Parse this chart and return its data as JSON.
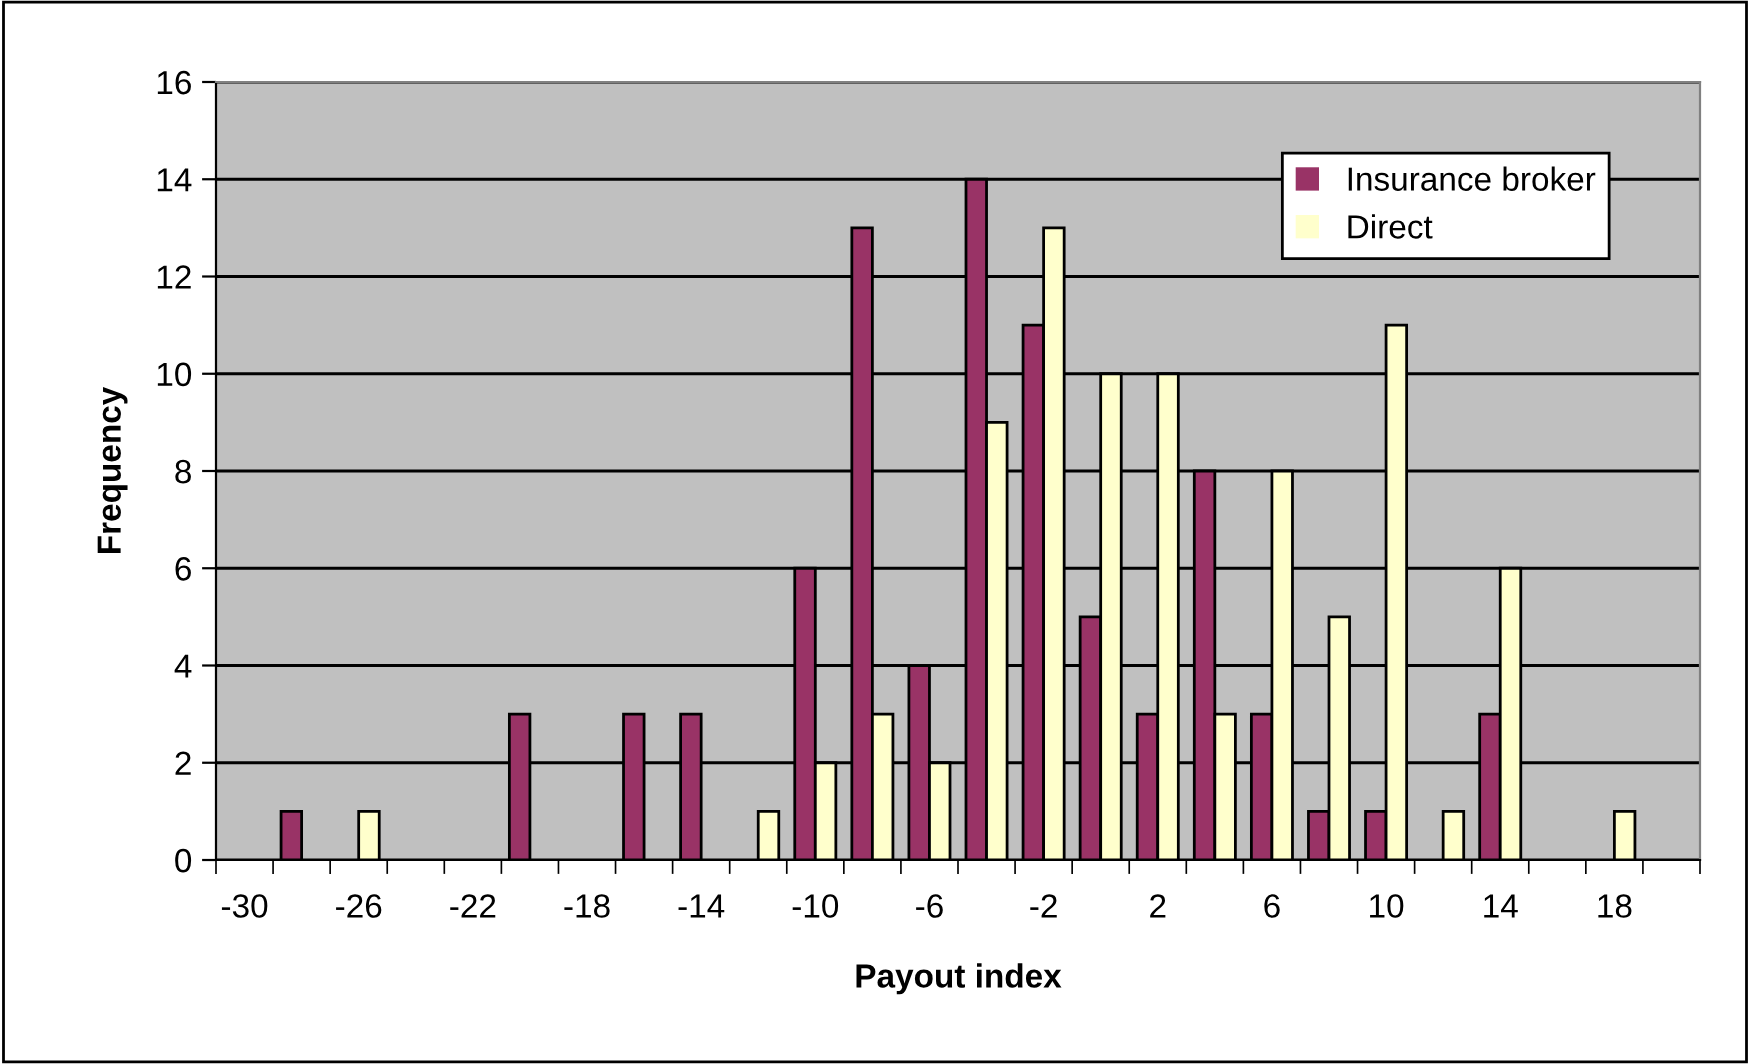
{
  "chart_data": {
    "type": "bar",
    "xlabel": "Payout index",
    "ylabel": "Frequency",
    "categories": [
      "-30",
      null,
      "-26",
      null,
      "-22",
      null,
      "-18",
      null,
      "-14",
      null,
      "-10",
      null,
      "-6",
      null,
      "-2",
      null,
      "2",
      null,
      "6",
      null,
      "10",
      null,
      "14",
      null,
      "18",
      null
    ],
    "series": [
      {
        "name": "Insurance broker",
        "color": "#993366",
        "values": [
          0,
          1,
          0,
          0,
          0,
          3,
          0,
          3,
          3,
          0,
          6,
          13,
          4,
          14,
          11,
          5,
          3,
          8,
          3,
          1,
          1,
          0,
          3,
          0,
          0,
          0
        ]
      },
      {
        "name": "Direct",
        "color": "#ffffcc",
        "values": [
          0,
          0,
          1,
          0,
          0,
          0,
          0,
          0,
          0,
          1,
          2,
          3,
          2,
          9,
          13,
          10,
          10,
          3,
          8,
          5,
          11,
          1,
          6,
          0,
          1,
          0
        ]
      }
    ],
    "ylim": [
      0,
      16
    ],
    "yticks": [
      0,
      2,
      4,
      6,
      8,
      10,
      12,
      14,
      16
    ],
    "grid": "y",
    "legend": "top right"
  }
}
